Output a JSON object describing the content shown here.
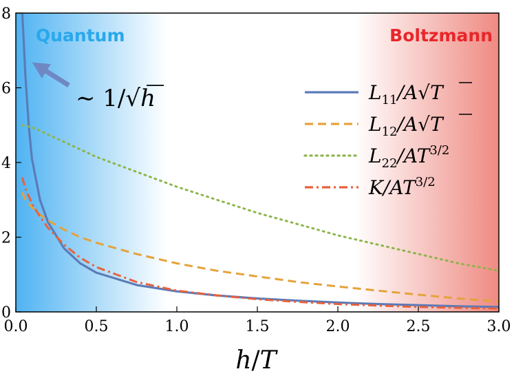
{
  "chart_data": {
    "type": "line",
    "xlabel": "h/T",
    "ylabel": "",
    "xlim": [
      0,
      3
    ],
    "ylim": [
      0,
      8
    ],
    "x_ticks": [
      "0.0",
      "0.5",
      "1.0",
      "1.5",
      "2.0",
      "2.5",
      "3.0"
    ],
    "y_ticks": [
      "0",
      "2",
      "4",
      "6",
      "8"
    ],
    "x": [
      0.04,
      0.06,
      0.08,
      0.1,
      0.15,
      0.2,
      0.3,
      0.4,
      0.5,
      0.75,
      1.0,
      1.25,
      1.5,
      1.75,
      2.0,
      2.25,
      2.5,
      2.75,
      3.0
    ],
    "series": [
      {
        "name": "L11/A√T",
        "style": "solid",
        "color": "#5b7bb8",
        "values": [
          8.0,
          6.3,
          5.0,
          4.1,
          3.0,
          2.4,
          1.7,
          1.3,
          1.05,
          0.72,
          0.55,
          0.44,
          0.36,
          0.3,
          0.25,
          0.21,
          0.18,
          0.15,
          0.13
        ]
      },
      {
        "name": "L12/A√T",
        "style": "dashed",
        "color": "#e5a23a",
        "values": [
          3.2,
          3.0,
          2.9,
          2.8,
          2.6,
          2.45,
          2.2,
          2.0,
          1.85,
          1.55,
          1.3,
          1.1,
          0.95,
          0.8,
          0.68,
          0.57,
          0.46,
          0.36,
          0.28
        ]
      },
      {
        "name": "L22/AT^{3/2}",
        "style": "dotted",
        "color": "#8db54a",
        "values": [
          5.0,
          4.98,
          4.96,
          4.94,
          4.85,
          4.75,
          4.55,
          4.35,
          4.15,
          3.75,
          3.35,
          3.0,
          2.65,
          2.35,
          2.05,
          1.8,
          1.55,
          1.3,
          1.1
        ]
      },
      {
        "name": "K/AT^{3/2}",
        "style": "dashdot",
        "color": "#e8613c",
        "values": [
          3.6,
          3.3,
          3.1,
          2.9,
          2.55,
          2.25,
          1.8,
          1.45,
          1.2,
          0.8,
          0.57,
          0.44,
          0.34,
          0.27,
          0.21,
          0.17,
          0.13,
          0.11,
          0.09
        ]
      }
    ],
    "legend": {
      "placement": "right",
      "entries": [
        "L11/A√T",
        "L12/A√T",
        "L22/AT^{3/2}",
        "K/AT^{3/2}"
      ]
    },
    "annotations": [
      {
        "text": "Quantum",
        "color": "#29a8ec",
        "placement": "top-left"
      },
      {
        "text": "Boltzmann",
        "color": "#e8262a",
        "placement": "top-right"
      },
      {
        "text": "∼ 1/√h",
        "target_series": "L11/A√T"
      }
    ],
    "background": {
      "left_region_color": "#4fb3f2",
      "right_region_color": "#ef8a82"
    },
    "grid": false
  }
}
